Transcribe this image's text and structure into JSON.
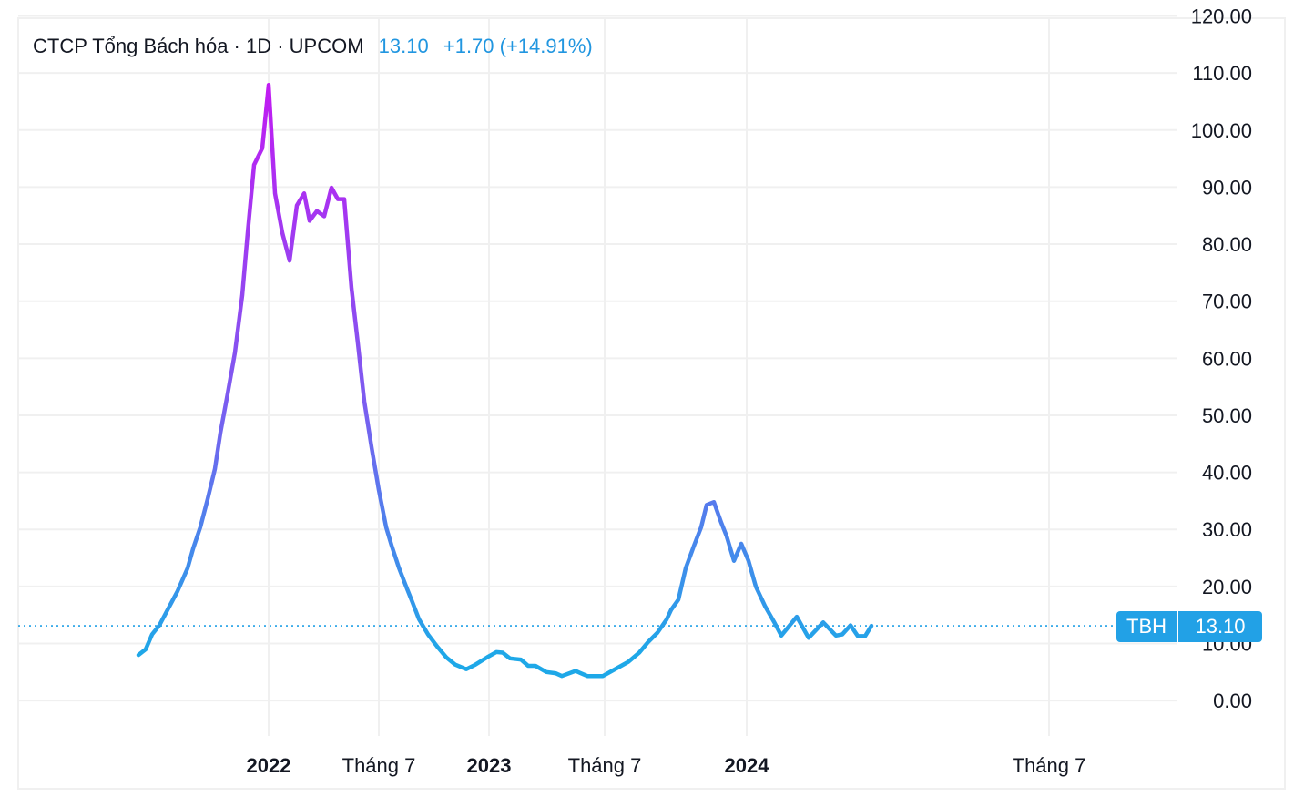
{
  "legend": {
    "title": "CTCP Tổng Bách hóa · 1D · UPCOM",
    "price": "13.10",
    "change": "+1.70 (+14.91%)"
  },
  "price_badge": {
    "symbol": "TBH",
    "value": "13.10"
  },
  "colors": {
    "accent": "#22a1e6",
    "line_top": "#c01cf2",
    "line_mid": "#7c5cf0",
    "line_bottom": "#1ea8e8",
    "grid": "#f0f0f0"
  },
  "chart_data": {
    "type": "line",
    "title": "CTCP Tổng Bách hóa · 1D · UPCOM",
    "xlabel": "",
    "ylabel": "",
    "x_unit": "bar index",
    "xlim": [
      -33,
      285
    ],
    "ylim": [
      -6.2,
      119.6
    ],
    "grid": true,
    "yticks": [
      0,
      10,
      20,
      30,
      40,
      50,
      60,
      70,
      80,
      90,
      100,
      110,
      120
    ],
    "ytick_labels": [
      "0.00",
      "10.00",
      "20.00",
      "30.00",
      "40.00",
      "50.00",
      "60.00",
      "70.00",
      "80.00",
      "90.00",
      "100.00",
      "110.00",
      "120.00"
    ],
    "xticks": [
      {
        "x": 35.75,
        "label": "2022",
        "bold": true
      },
      {
        "x": 66,
        "label": "Tháng 7",
        "bold": false
      },
      {
        "x": 96.25,
        "label": "2023",
        "bold": true
      },
      {
        "x": 128,
        "label": "Tháng 7",
        "bold": false
      },
      {
        "x": 167,
        "label": "2024",
        "bold": true
      },
      {
        "x": 250,
        "label": "Tháng 7",
        "bold": false
      }
    ],
    "last_price": 13.1,
    "series": [
      {
        "name": "TBH",
        "points": [
          [
            0,
            8.0
          ],
          [
            2,
            9.0
          ],
          [
            3.75,
            11.6
          ],
          [
            5.75,
            13.2
          ],
          [
            7.75,
            15.6
          ],
          [
            10.75,
            19.2
          ],
          [
            13.5,
            23.2
          ],
          [
            15,
            26.6
          ],
          [
            17,
            30.4
          ],
          [
            19,
            35.3
          ],
          [
            21,
            40.6
          ],
          [
            22.5,
            46.9
          ],
          [
            24.5,
            53.8
          ],
          [
            26.5,
            61.0
          ],
          [
            28.5,
            71.0
          ],
          [
            30,
            82.0
          ],
          [
            31.75,
            93.9
          ],
          [
            34,
            96.8
          ],
          [
            35.75,
            107.9
          ],
          [
            37.5,
            88.9
          ],
          [
            39.5,
            82.0
          ],
          [
            41.5,
            77.1
          ],
          [
            43.5,
            86.8
          ],
          [
            45.5,
            88.9
          ],
          [
            47,
            84.1
          ],
          [
            49,
            85.8
          ],
          [
            51,
            84.9
          ],
          [
            53,
            89.9
          ],
          [
            54.75,
            87.9
          ],
          [
            56.5,
            87.9
          ],
          [
            58.5,
            72.3
          ],
          [
            60.25,
            62.6
          ],
          [
            62,
            52.5
          ],
          [
            64,
            44.4
          ],
          [
            66,
            36.9
          ],
          [
            68,
            30.4
          ],
          [
            69.5,
            27.2
          ],
          [
            71.5,
            23.3
          ],
          [
            73.5,
            20.0
          ],
          [
            75.25,
            17.2
          ],
          [
            77,
            14.3
          ],
          [
            79.5,
            11.6
          ],
          [
            82,
            9.5
          ],
          [
            84.5,
            7.6
          ],
          [
            87,
            6.3
          ],
          [
            90,
            5.5
          ],
          [
            92.5,
            6.3
          ],
          [
            95.75,
            7.6
          ],
          [
            98.25,
            8.5
          ],
          [
            100,
            8.4
          ],
          [
            102,
            7.4
          ],
          [
            105,
            7.2
          ],
          [
            107,
            6.1
          ],
          [
            109,
            6.1
          ],
          [
            112,
            5.0
          ],
          [
            114.5,
            4.8
          ],
          [
            116.25,
            4.3
          ],
          [
            120,
            5.2
          ],
          [
            123.25,
            4.3
          ],
          [
            127.5,
            4.3
          ],
          [
            130,
            5.2
          ],
          [
            134.5,
            6.8
          ],
          [
            137.5,
            8.4
          ],
          [
            140,
            10.3
          ],
          [
            142.5,
            11.9
          ],
          [
            145,
            14.2
          ],
          [
            146.25,
            15.9
          ],
          [
            148.25,
            17.7
          ],
          [
            150.25,
            23.2
          ],
          [
            152.5,
            27.1
          ],
          [
            154.5,
            30.4
          ],
          [
            156,
            34.3
          ],
          [
            158,
            34.8
          ],
          [
            160,
            31.2
          ],
          [
            161.5,
            28.8
          ],
          [
            163.5,
            24.5
          ],
          [
            165.5,
            27.5
          ],
          [
            167.5,
            24.5
          ],
          [
            169.5,
            20.0
          ],
          [
            172,
            16.6
          ],
          [
            174.5,
            13.8
          ],
          [
            176.5,
            11.4
          ],
          [
            180.75,
            14.7
          ],
          [
            184,
            11.0
          ],
          [
            188,
            13.7
          ],
          [
            191.5,
            11.4
          ],
          [
            193.25,
            11.6
          ],
          [
            195.5,
            13.2
          ],
          [
            197.5,
            11.3
          ],
          [
            199.5,
            11.3
          ],
          [
            201.25,
            13.1
          ]
        ]
      }
    ]
  }
}
